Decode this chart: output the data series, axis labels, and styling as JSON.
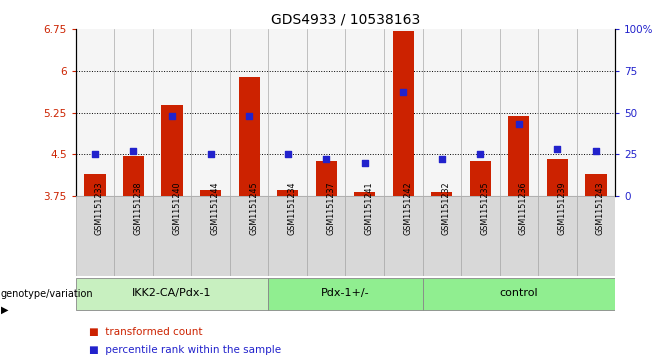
{
  "title": "GDS4933 / 10538163",
  "samples": [
    "GSM1151233",
    "GSM1151238",
    "GSM1151240",
    "GSM1151244",
    "GSM1151245",
    "GSM1151234",
    "GSM1151237",
    "GSM1151241",
    "GSM1151242",
    "GSM1151232",
    "GSM1151235",
    "GSM1151236",
    "GSM1151239",
    "GSM1151243"
  ],
  "transformed_count": [
    4.15,
    4.47,
    5.38,
    3.85,
    5.88,
    3.85,
    4.38,
    3.82,
    6.71,
    3.83,
    4.38,
    5.18,
    4.42,
    4.15
  ],
  "percentile_rank": [
    25,
    27,
    48,
    25,
    48,
    25,
    22,
    20,
    62,
    22,
    25,
    43,
    28,
    27
  ],
  "groups": [
    {
      "name": "IKK2-CA/Pdx-1",
      "start": 0,
      "end": 5
    },
    {
      "name": "Pdx-1+/-",
      "start": 5,
      "end": 9
    },
    {
      "name": "control",
      "start": 9,
      "end": 14
    }
  ],
  "group_colors": [
    "#c8f0c0",
    "#90ee90",
    "#90ee90"
  ],
  "ylim_left": [
    3.75,
    6.75
  ],
  "ylim_right": [
    0,
    100
  ],
  "yticks_left": [
    3.75,
    4.5,
    5.25,
    6.0,
    6.75
  ],
  "yticks_right": [
    0,
    25,
    50,
    75,
    100
  ],
  "ytick_labels_left": [
    "3.75",
    "4.5",
    "5.25",
    "6",
    "6.75"
  ],
  "ytick_labels_right": [
    "0",
    "25",
    "50",
    "75",
    "100%"
  ],
  "grid_values": [
    4.5,
    5.25,
    6.0
  ],
  "bar_color": "#cc2200",
  "dot_color": "#2222cc",
  "bar_width": 0.55,
  "bar_bottom": 3.75,
  "xlabel_group": "genotype/variation",
  "legend_items": [
    {
      "color": "#cc2200",
      "label": "transformed count"
    },
    {
      "color": "#2222cc",
      "label": "percentile rank within the sample"
    }
  ],
  "sample_bg_color": "#d8d8d8",
  "sample_border_color": "#aaaaaa"
}
